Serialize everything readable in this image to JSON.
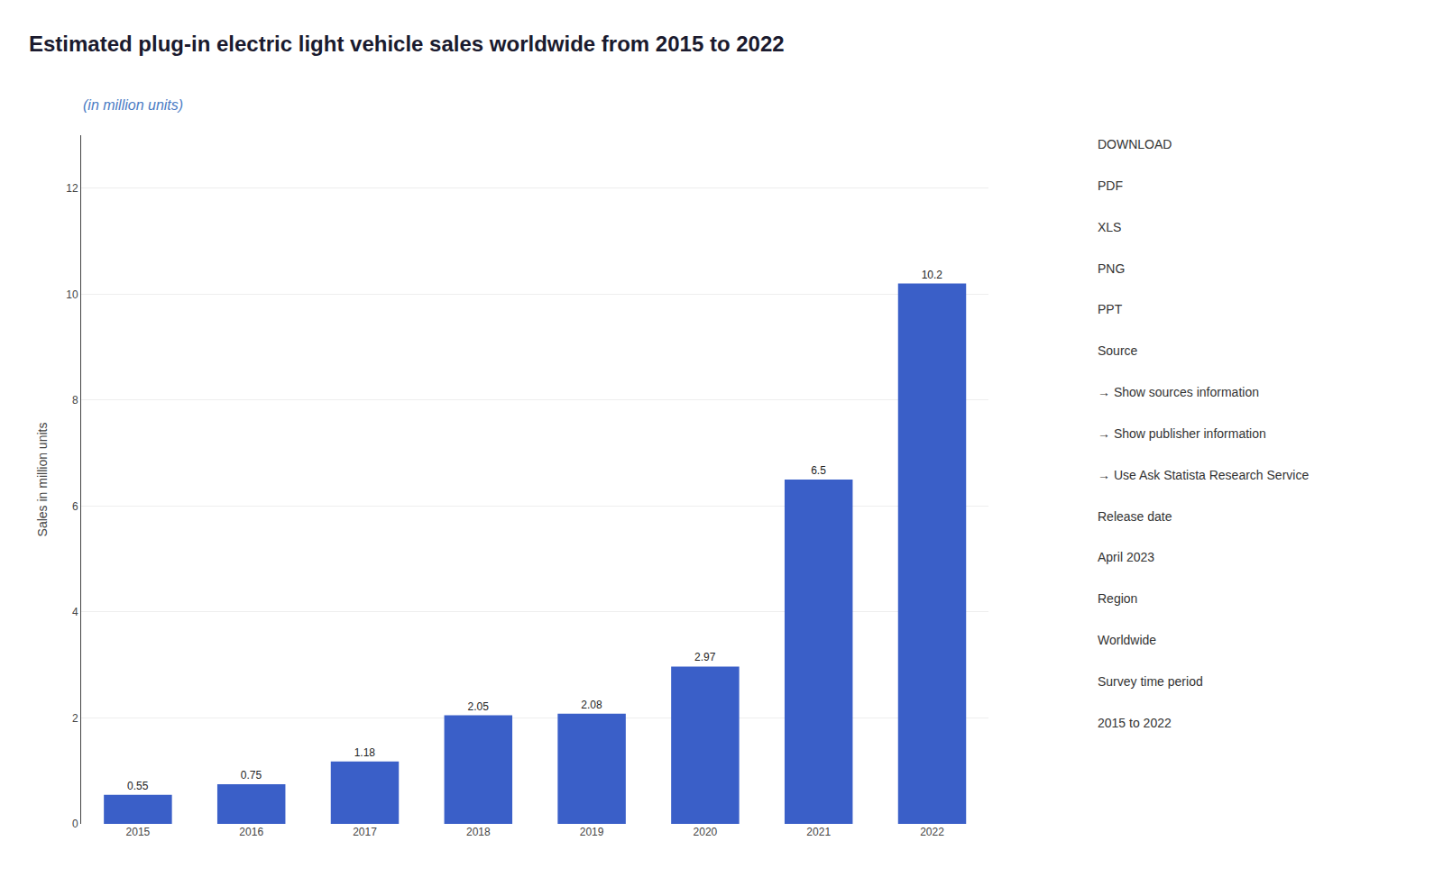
{
  "chart_data": {
    "type": "bar",
    "title": "Estimated plug-in electric light vehicle sales worldwide from 2015 to 2022",
    "subtitle": "(in million units)",
    "categories": [
      "2015",
      "2016",
      "2017",
      "2018",
      "2019",
      "2020",
      "2021",
      "2022"
    ],
    "values": [
      0.55,
      0.75,
      1.18,
      2.05,
      2.08,
      2.97,
      6.5,
      10.2
    ],
    "color": "#3a5fc8",
    "ylabel": "Sales in million units",
    "ylim": [
      0,
      13
    ],
    "yticks": [
      0,
      2,
      4,
      6,
      8,
      10,
      12
    ],
    "grid": true,
    "data_labels": true,
    "annotations": [
      "DOWNLOAD",
      "PDF",
      "XLS",
      "PNG",
      "PPT",
      "Source",
      "→ Show sources information",
      "→ Show publisher information",
      "→ Use Ask Statista Research Service",
      "Release date",
      "April 2023",
      "Region",
      "Worldwide",
      "Survey time period",
      "2015 to 2022"
    ]
  }
}
